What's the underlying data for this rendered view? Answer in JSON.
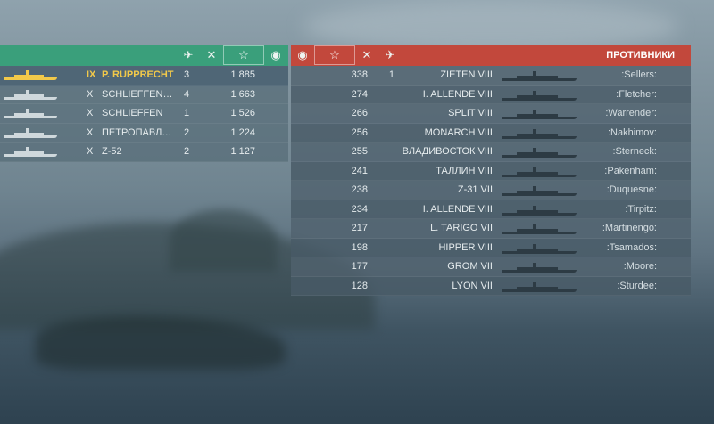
{
  "allies": {
    "header_icons": [
      "plane-icon",
      "crossed-planes-icon",
      "star-icon",
      "ribbon-icon"
    ],
    "rows": [
      {
        "tier": "IX",
        "name": "P. RUPPRECHT",
        "kills": "3",
        "exp": "1 885",
        "highlight": true
      },
      {
        "tier": "X",
        "name": "SCHLIEFFEN C...",
        "kills": "4",
        "exp": "1 663"
      },
      {
        "tier": "X",
        "name": "SCHLIEFFEN",
        "kills": "1",
        "exp": "1 526"
      },
      {
        "tier": "X",
        "name": "ПЕТРОПАВЛО...",
        "kills": "2",
        "exp": "1 224"
      },
      {
        "tier": "X",
        "name": "Z-52",
        "kills": "2",
        "exp": "1 127"
      }
    ]
  },
  "enemies": {
    "title": "ПРОТИВНИКИ",
    "header_icons": [
      "ribbon-icon",
      "star-icon",
      "crossed-planes-icon",
      "plane-icon"
    ],
    "rows": [
      {
        "exp": "338",
        "kills": "1",
        "ship": "ZIETEN VIII",
        "player": ":Sellers:"
      },
      {
        "exp": "274",
        "kills": "",
        "ship": "I. ALLENDE VIII",
        "player": ":Fletcher:"
      },
      {
        "exp": "266",
        "kills": "",
        "ship": "SPLIT VIII",
        "player": ":Warrender:"
      },
      {
        "exp": "256",
        "kills": "",
        "ship": "MONARCH VIII",
        "player": ":Nakhimov:"
      },
      {
        "exp": "255",
        "kills": "",
        "ship": "ВЛАДИВОСТОК VIII",
        "player": ":Sterneck:"
      },
      {
        "exp": "241",
        "kills": "",
        "ship": "ТАЛЛИН VIII",
        "player": ":Pakenham:"
      },
      {
        "exp": "238",
        "kills": "",
        "ship": "Z-31 VII",
        "player": ":Duquesne:"
      },
      {
        "exp": "234",
        "kills": "",
        "ship": "I. ALLENDE VIII",
        "player": ":Tirpitz:"
      },
      {
        "exp": "217",
        "kills": "",
        "ship": "L. TARIGO VII",
        "player": ":Martinengo:"
      },
      {
        "exp": "198",
        "kills": "",
        "ship": "HIPPER VIII",
        "player": ":Tsamados:"
      },
      {
        "exp": "177",
        "kills": "",
        "ship": "GROM VII",
        "player": ":Moore:"
      },
      {
        "exp": "128",
        "kills": "",
        "ship": "LYON VII",
        "player": ":Sturdee:"
      }
    ]
  },
  "colors": {
    "ally_header": "#3a9f7b",
    "enemy_header": "#c2483c",
    "highlight_text": "#f2c94a"
  }
}
